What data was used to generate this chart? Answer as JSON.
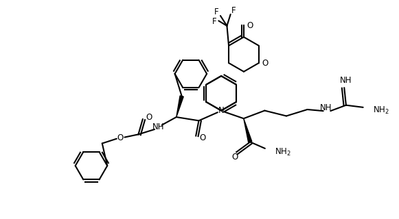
{
  "lw": 1.5,
  "bg": "#ffffff",
  "fg": "#000000",
  "figsize": [
    5.81,
    3.2
  ],
  "dpi": 100,
  "xlim": [
    0,
    11.0
  ],
  "ylim": [
    0,
    6.0
  ]
}
